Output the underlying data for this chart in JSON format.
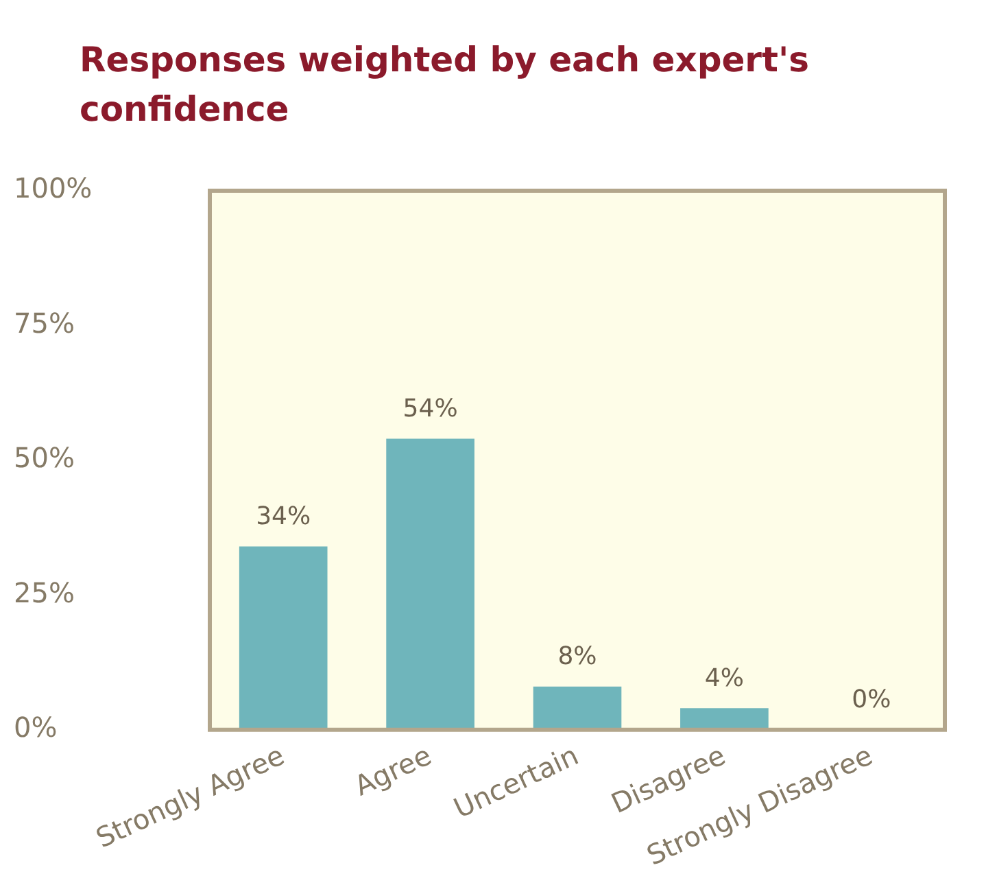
{
  "chart_data": {
    "type": "bar",
    "title": "Responses weighted by each expert's confidence",
    "categories": [
      "Strongly Agree",
      "Agree",
      "Uncertain",
      "Disagree",
      "Strongly Disagree"
    ],
    "values": [
      34,
      54,
      8,
      4,
      0
    ],
    "value_labels": [
      "34%",
      "54%",
      "8%",
      "4%",
      "0%"
    ],
    "color": "#6fb5bb",
    "ylim": [
      0,
      100
    ],
    "yticks": [
      {
        "value": 0,
        "label": "0%"
      },
      {
        "value": 25,
        "label": "25%"
      },
      {
        "value": 50,
        "label": "50%"
      },
      {
        "value": 75,
        "label": "75%"
      },
      {
        "value": 100,
        "label": "100%"
      }
    ],
    "grid": false,
    "legend": false
  }
}
